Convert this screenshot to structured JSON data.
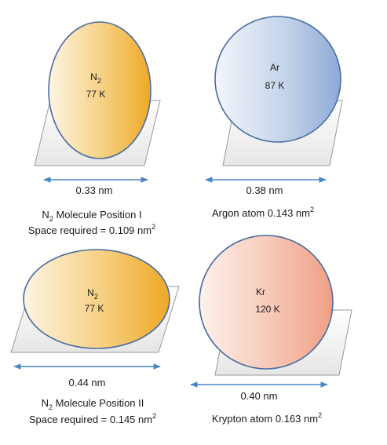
{
  "panels": [
    {
      "id": "n2-position-1",
      "shape_labels": [
        "N",
        "77 K"
      ],
      "shape_subscript": "2",
      "color": "#f0b43c",
      "dimension": "0.33 nm",
      "caption_line1_prefix": "N",
      "caption_line1_subscript": "2",
      "caption_line1_suffix": " Molecule Position I",
      "caption_line2": "Space required = 0.109 nm",
      "caption_line2_superscript": "2"
    },
    {
      "id": "argon",
      "shape_labels": [
        "Ar",
        "87 K"
      ],
      "color": "#9fb7db",
      "dimension": "0.38 nm",
      "caption_line1": "Argon atom 0.143 nm",
      "caption_line1_superscript": "2"
    },
    {
      "id": "n2-position-2",
      "shape_labels": [
        "N",
        "77 K"
      ],
      "shape_subscript": "2",
      "color": "#f0b43c",
      "dimension": "0.44 nm",
      "caption_line1_prefix": "N",
      "caption_line1_subscript": "2",
      "caption_line1_suffix": " Molecule Position II",
      "caption_line2": "Space required = 0.145 nm",
      "caption_line2_superscript": "2"
    },
    {
      "id": "krypton",
      "shape_labels": [
        "Kr",
        "120 K"
      ],
      "color": "#f0a68f",
      "dimension": "0.40 nm",
      "caption_line1": "Krypton atom 0.163 nm",
      "caption_line1_superscript": "2"
    }
  ],
  "arrow_color": "#4a86c5"
}
